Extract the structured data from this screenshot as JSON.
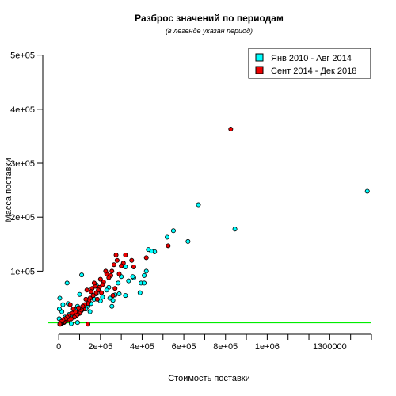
{
  "chart_data": {
    "type": "scatter",
    "title": "Разброс значений по периодам",
    "subtitle": "(в легенде указан период)",
    "xlabel": "Стоимость поставки",
    "ylabel": "Масса поставки",
    "xlim": [
      -50000,
      1500000
    ],
    "ylim": [
      -5000,
      520000
    ],
    "x_ticks": [
      {
        "value": 0,
        "label": "0"
      },
      {
        "value": 200000,
        "label": "2e+05"
      },
      {
        "value": 400000,
        "label": "4e+05"
      },
      {
        "value": 600000,
        "label": "6e+05"
      },
      {
        "value": 800000,
        "label": "8e+05"
      },
      {
        "value": 1000000,
        "label": "1e+06"
      },
      {
        "value": 1300000,
        "label": "1300000"
      }
    ],
    "x_minor_ticks": [
      100000,
      300000,
      500000,
      700000,
      900000,
      1100000,
      1200000,
      1400000,
      1500000
    ],
    "y_ticks": [
      {
        "value": 100000,
        "label": "1e+05"
      },
      {
        "value": 200000,
        "label": "2e+05"
      },
      {
        "value": 300000,
        "label": "3e+05"
      },
      {
        "value": 400000,
        "label": "4e+05"
      },
      {
        "value": 500000,
        "label": "5e+05"
      }
    ],
    "reference_line": {
      "y": 5000,
      "color": "#00ee00"
    },
    "grid": false,
    "legend_position": "top-right",
    "series": [
      {
        "name": "Янв 2010 - Авг 2014",
        "color": "#00ffff",
        "points": [
          [
            1480000,
            248000
          ],
          [
            845000,
            178000
          ],
          [
            670000,
            223000
          ],
          [
            620000,
            155000
          ],
          [
            550000,
            175000
          ],
          [
            520000,
            163000
          ],
          [
            460000,
            136000
          ],
          [
            445000,
            137000
          ],
          [
            430000,
            140000
          ],
          [
            420000,
            100000
          ],
          [
            410000,
            92000
          ],
          [
            395000,
            78000
          ],
          [
            410000,
            78000
          ],
          [
            390000,
            60000
          ],
          [
            360000,
            88000
          ],
          [
            355000,
            90000
          ],
          [
            335000,
            82000
          ],
          [
            320000,
            108000
          ],
          [
            300000,
            90000
          ],
          [
            285000,
            78000
          ],
          [
            270000,
            56000
          ],
          [
            260000,
            46000
          ],
          [
            255000,
            35000
          ],
          [
            245000,
            50000
          ],
          [
            240000,
            70000
          ],
          [
            230000,
            65000
          ],
          [
            210000,
            52000
          ],
          [
            200000,
            45000
          ],
          [
            190000,
            70000
          ],
          [
            180000,
            58000
          ],
          [
            170000,
            48000
          ],
          [
            155000,
            40000
          ],
          [
            140000,
            35000
          ],
          [
            130000,
            30000
          ],
          [
            110000,
            93000
          ],
          [
            100000,
            57000
          ],
          [
            90000,
            35000
          ],
          [
            80000,
            28000
          ],
          [
            70000,
            20000
          ],
          [
            60000,
            16000
          ],
          [
            50000,
            20000
          ],
          [
            40000,
            78000
          ],
          [
            30000,
            15000
          ],
          [
            20000,
            38000
          ],
          [
            15000,
            25000
          ],
          [
            10000,
            8000
          ],
          [
            5000,
            50000
          ],
          [
            3000,
            30000
          ],
          [
            2000,
            12000
          ],
          [
            8000,
            2000
          ],
          [
            25000,
            5000
          ],
          [
            60000,
            3000
          ],
          [
            90000,
            5000
          ],
          [
            45000,
            40000
          ],
          [
            320000,
            55000
          ],
          [
            290000,
            58000
          ],
          [
            150000,
            25000
          ],
          [
            180000,
            75000
          ]
        ]
      },
      {
        "name": "Сент 2014 - Дек 2018",
        "color": "#ee0000",
        "points": [
          [
            825000,
            363000
          ],
          [
            525000,
            147000
          ],
          [
            420000,
            125000
          ],
          [
            360000,
            108000
          ],
          [
            350000,
            120000
          ],
          [
            320000,
            130000
          ],
          [
            310000,
            115000
          ],
          [
            300000,
            110000
          ],
          [
            290000,
            95000
          ],
          [
            280000,
            120000
          ],
          [
            275000,
            130000
          ],
          [
            265000,
            112000
          ],
          [
            255000,
            100000
          ],
          [
            250000,
            92000
          ],
          [
            240000,
            88000
          ],
          [
            230000,
            95000
          ],
          [
            225000,
            100000
          ],
          [
            215000,
            80000
          ],
          [
            210000,
            75000
          ],
          [
            200000,
            85000
          ],
          [
            195000,
            70000
          ],
          [
            190000,
            65000
          ],
          [
            180000,
            60000
          ],
          [
            175000,
            72000
          ],
          [
            170000,
            78000
          ],
          [
            165000,
            55000
          ],
          [
            160000,
            68000
          ],
          [
            155000,
            62000
          ],
          [
            150000,
            50000
          ],
          [
            145000,
            45000
          ],
          [
            140000,
            40000
          ],
          [
            135000,
            65000
          ],
          [
            130000,
            48000
          ],
          [
            125000,
            38000
          ],
          [
            120000,
            30000
          ],
          [
            115000,
            35000
          ],
          [
            110000,
            28000
          ],
          [
            105000,
            25000
          ],
          [
            100000,
            22000
          ],
          [
            95000,
            32000
          ],
          [
            90000,
            20000
          ],
          [
            85000,
            18000
          ],
          [
            80000,
            25000
          ],
          [
            75000,
            15000
          ],
          [
            70000,
            30000
          ],
          [
            65000,
            22000
          ],
          [
            60000,
            12000
          ],
          [
            55000,
            38000
          ],
          [
            50000,
            18000
          ],
          [
            45000,
            10000
          ],
          [
            40000,
            15000
          ],
          [
            35000,
            8000
          ],
          [
            30000,
            12000
          ],
          [
            25000,
            6000
          ],
          [
            20000,
            10000
          ],
          [
            15000,
            4000
          ],
          [
            12000,
            7000
          ],
          [
            8000,
            3000
          ],
          [
            5000,
            2000
          ],
          [
            140000,
            2000
          ],
          [
            260000,
            55000
          ],
          [
            205000,
            60000
          ],
          [
            185000,
            48000
          ],
          [
            270000,
            68000
          ]
        ]
      }
    ]
  }
}
